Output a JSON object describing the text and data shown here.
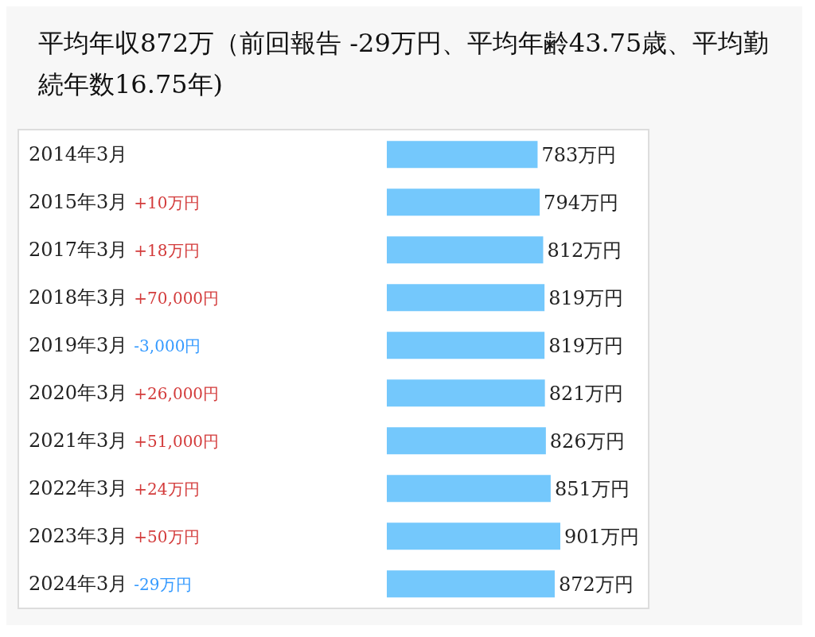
{
  "chart_data": {
    "type": "bar",
    "orientation": "horizontal",
    "title": "平均年収872万（前回報告 -29万円、平均年齢43.75歳、平均勤続年数16.75年)",
    "categories": [
      "2014年3月",
      "2015年3月",
      "2017年3月",
      "2018年3月",
      "2019年3月",
      "2020年3月",
      "2021年3月",
      "2022年3月",
      "2023年3月",
      "2024年3月"
    ],
    "values": [
      783,
      794,
      812,
      819,
      819,
      821,
      826,
      851,
      901,
      872
    ],
    "value_labels": [
      "783万円",
      "794万円",
      "812万円",
      "819万円",
      "819万円",
      "821万円",
      "826万円",
      "851万円",
      "901万円",
      "872万円"
    ],
    "color": "#74c8fc",
    "annotations": [
      "+10万円",
      "+18万円",
      "+70,000円",
      "-3,000円",
      "+26,000円",
      "+51,000円",
      "+24万円",
      "+50万円",
      "-29万円"
    ]
  }
}
